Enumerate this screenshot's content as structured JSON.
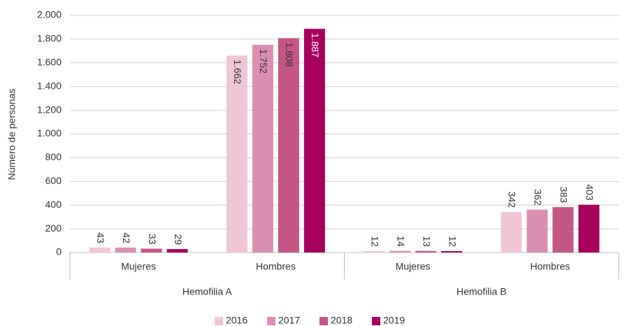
{
  "chart_data": {
    "type": "bar",
    "y_label": "Número de personas",
    "groups": [
      "Hemofilia A",
      "Hemofilia B"
    ],
    "categories": [
      "Mujeres",
      "Hombres",
      "Mujeres",
      "Hombres"
    ],
    "series": [
      {
        "name": "2016",
        "color": "#f0c6d7",
        "values": [
          43,
          1662,
          12,
          342
        ],
        "value_labels": [
          "43",
          "1.662",
          "12",
          "342"
        ]
      },
      {
        "name": "2017",
        "color": "#db8fb0",
        "values": [
          42,
          1752,
          14,
          362
        ],
        "value_labels": [
          "42",
          "1.752",
          "14",
          "362"
        ]
      },
      {
        "name": "2018",
        "color": "#c45685",
        "values": [
          33,
          1808,
          13,
          383
        ],
        "value_labels": [
          "33",
          "1.808",
          "13",
          "383"
        ]
      },
      {
        "name": "2019",
        "color": "#a8005f",
        "values": [
          29,
          1887,
          12,
          403
        ],
        "value_labels": [
          "29",
          "1.887",
          "12",
          "403"
        ]
      }
    ],
    "ylim": [
      0,
      2000
    ],
    "yticks": [
      0,
      200,
      400,
      600,
      800,
      {
        "value": 1000,
        "label": "1.000"
      },
      {
        "value": 1200,
        "label": "1.200"
      },
      {
        "value": 1400,
        "label": "1.400"
      },
      {
        "value": 1600,
        "label": "1.600"
      },
      {
        "value": 1800,
        "label": "1.800"
      },
      {
        "value": 2000,
        "label": "2.000"
      }
    ],
    "grid": true,
    "legend": "bottom"
  }
}
